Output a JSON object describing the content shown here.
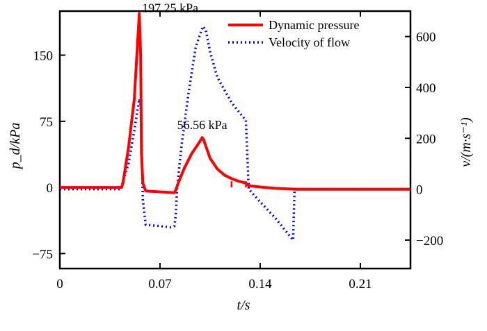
{
  "chart_data": {
    "type": "line",
    "xlabel": "t/s",
    "ylabel_left": "p_d/kPa",
    "ylabel_right": "v/(m·s⁻¹)",
    "x_ticks": [
      0,
      0.07,
      0.14,
      0.21
    ],
    "x_tick_labels": [
      "0",
      "0.07",
      "0.14",
      "0.21"
    ],
    "x_lim": [
      0,
      0.245
    ],
    "y_left_ticks": [
      -75,
      0,
      75,
      150
    ],
    "y_left_tick_labels": [
      "−75",
      "0",
      "75",
      "150"
    ],
    "y_left_lim": [
      -92,
      200
    ],
    "y_right_ticks": [
      -200,
      0,
      200,
      400,
      600
    ],
    "y_right_tick_labels": [
      "−200",
      "0",
      "200",
      "400",
      "600"
    ],
    "y_right_lim": [
      -312,
      700
    ],
    "grid": false,
    "legend_position": "top-right",
    "series": [
      {
        "name": "Dynamic pressure",
        "axis": "left",
        "color": "#ff0000",
        "style": "solid",
        "x": [
          0,
          0.043,
          0.044,
          0.048,
          0.052,
          0.0555,
          0.0565,
          0.057,
          0.058,
          0.06,
          0.07,
          0.08,
          0.081,
          0.083,
          0.087,
          0.092,
          0.097,
          0.0995,
          0.1005,
          0.102,
          0.105,
          0.11,
          0.115,
          0.12,
          0.125,
          0.13,
          0.132,
          0.14,
          0.15,
          0.165,
          0.245
        ],
        "y": [
          0,
          0,
          4,
          45,
          100,
          197.25,
          150,
          40,
          5,
          -4,
          -5,
          -6,
          -3,
          6,
          22,
          38,
          50,
          56.56,
          54,
          47,
          33,
          21,
          14,
          10,
          7,
          5,
          2,
          0.5,
          -1,
          -2,
          -2
        ]
      },
      {
        "name": "Velocity of flow",
        "axis": "right",
        "color": "#0000ff",
        "style": "dotted",
        "x": [
          0,
          0.043,
          0.044,
          0.048,
          0.052,
          0.0555,
          0.0565,
          0.058,
          0.06,
          0.07,
          0.077,
          0.08,
          0.081,
          0.082,
          0.085,
          0.09,
          0.095,
          0.1,
          0.102,
          0.105,
          0.11,
          0.12,
          0.13,
          0.132,
          0.14,
          0.15,
          0.163,
          0.164,
          0.165,
          0.245
        ],
        "y": [
          0,
          0,
          30,
          100,
          230,
          355,
          330,
          -40,
          -140,
          -145,
          -150,
          -145,
          -100,
          10,
          170,
          380,
          560,
          640,
          625,
          540,
          440,
          340,
          270,
          0,
          -50,
          -110,
          -200,
          0,
          0,
          0
        ]
      }
    ],
    "annotations": [
      {
        "text": "197.25 kPa",
        "x": 0.0555,
        "y": 197.25
      },
      {
        "text": "56.56 kPa",
        "x": 0.0995,
        "y": 56.56
      }
    ]
  }
}
